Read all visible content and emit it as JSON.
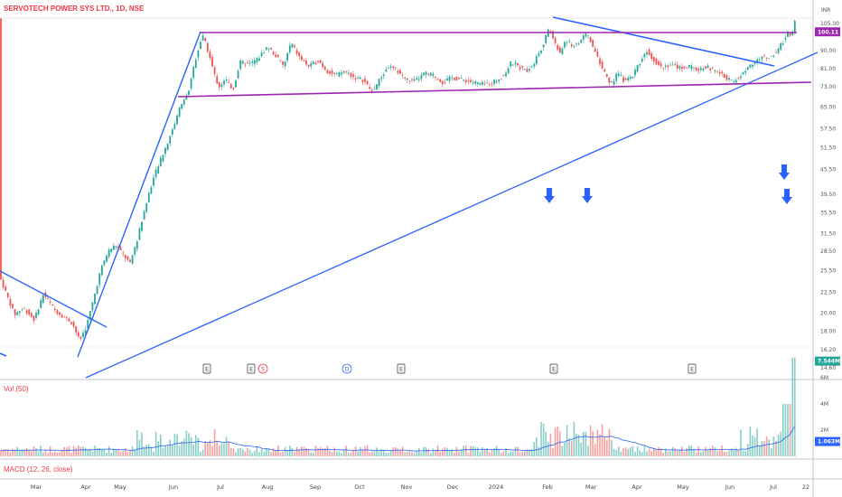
{
  "header": {
    "title": "SERVOTECH POWER SYS LTD., 1D, NSE",
    "currency": "INR"
  },
  "colors": {
    "up": "#26a69a",
    "down": "#ef5350",
    "trendline": "#2962ff",
    "channel": "#9c27b0",
    "arrow": "#2962ff",
    "volume_ma": "#2962ff"
  },
  "chart_data": {
    "type": "candlestick",
    "price_axis": {
      "scale": "log",
      "ticks": [
        "105.00",
        "90.00",
        "81.00",
        "73.00",
        "65.00",
        "57.50",
        "51.50",
        "45.50",
        "39.50",
        "35.50",
        "31.50",
        "28.50",
        "25.50",
        "22.50",
        "20.00",
        "18.00",
        "16.20",
        "14.60"
      ],
      "last_price": "100.11"
    },
    "x_axis": {
      "labels": [
        "Mar",
        "Apr",
        "May",
        "Jun",
        "Jul",
        "Aug",
        "Sep",
        "Oct",
        "Nov",
        "Dec",
        "2024",
        "Feb",
        "Mar",
        "Apr",
        "May",
        "Jun",
        "Jul",
        "22"
      ]
    },
    "volume_pane": {
      "label": "Vol (50)",
      "ticks": [
        "6M",
        "4M",
        "2M"
      ],
      "last_volume": "7.544M",
      "volume_ma": "1.063M"
    },
    "macd_pane": {
      "label": "MACD (12, 26, close)"
    },
    "event_markers": [
      {
        "kind": "E",
        "month": "Jun"
      },
      {
        "kind": "E",
        "month": "Jul"
      },
      {
        "kind": "S",
        "month": "Jul"
      },
      {
        "kind": "D",
        "month": "Sep"
      },
      {
        "kind": "E",
        "month": "Oct"
      },
      {
        "kind": "E",
        "month": "Feb"
      },
      {
        "kind": "E",
        "month": "May"
      }
    ],
    "price_path": [
      {
        "t": 0,
        "p": 24.5
      },
      {
        "t": 8,
        "p": 22.0
      },
      {
        "t": 16,
        "p": 19.8
      },
      {
        "t": 26,
        "p": 20.6
      },
      {
        "t": 38,
        "p": 19.2
      },
      {
        "t": 48,
        "p": 22.3
      },
      {
        "t": 60,
        "p": 20.4
      },
      {
        "t": 70,
        "p": 19.6
      },
      {
        "t": 80,
        "p": 18.9
      },
      {
        "t": 88,
        "p": 17.0
      },
      {
        "t": 96,
        "p": 18.6
      },
      {
        "t": 104,
        "p": 21.8
      },
      {
        "t": 112,
        "p": 25.8
      },
      {
        "t": 120,
        "p": 28.5
      },
      {
        "t": 128,
        "p": 29.5
      },
      {
        "t": 136,
        "p": 28.0
      },
      {
        "t": 144,
        "p": 26.5
      },
      {
        "t": 152,
        "p": 30.5
      },
      {
        "t": 160,
        "p": 36.0
      },
      {
        "t": 168,
        "p": 42.0
      },
      {
        "t": 176,
        "p": 47.0
      },
      {
        "t": 184,
        "p": 52.0
      },
      {
        "t": 192,
        "p": 58.0
      },
      {
        "t": 200,
        "p": 66.0
      },
      {
        "t": 208,
        "p": 70.0
      },
      {
        "t": 216,
        "p": 85.0
      },
      {
        "t": 224,
        "p": 98.0
      },
      {
        "t": 230,
        "p": 90.0
      },
      {
        "t": 236,
        "p": 80.0
      },
      {
        "t": 242,
        "p": 73.0
      },
      {
        "t": 250,
        "p": 76.0
      },
      {
        "t": 258,
        "p": 72.0
      },
      {
        "t": 266,
        "p": 84.0
      },
      {
        "t": 276,
        "p": 83.0
      },
      {
        "t": 286,
        "p": 86.0
      },
      {
        "t": 296,
        "p": 92.0
      },
      {
        "t": 306,
        "p": 87.0
      },
      {
        "t": 314,
        "p": 82.0
      },
      {
        "t": 322,
        "p": 94.0
      },
      {
        "t": 332,
        "p": 86.0
      },
      {
        "t": 342,
        "p": 82.0
      },
      {
        "t": 352,
        "p": 85.0
      },
      {
        "t": 362,
        "p": 80.0
      },
      {
        "t": 372,
        "p": 78.0
      },
      {
        "t": 382,
        "p": 80.0
      },
      {
        "t": 392,
        "p": 77.0
      },
      {
        "t": 402,
        "p": 76.0
      },
      {
        "t": 412,
        "p": 71.0
      },
      {
        "t": 420,
        "p": 76.0
      },
      {
        "t": 430,
        "p": 82.0
      },
      {
        "t": 440,
        "p": 80.0
      },
      {
        "t": 450,
        "p": 76.0
      },
      {
        "t": 460,
        "p": 75.5
      },
      {
        "t": 470,
        "p": 79.0
      },
      {
        "t": 480,
        "p": 78.0
      },
      {
        "t": 490,
        "p": 75.0
      },
      {
        "t": 500,
        "p": 77.0
      },
      {
        "t": 512,
        "p": 76.0
      },
      {
        "t": 524,
        "p": 75.0
      },
      {
        "t": 536,
        "p": 74.0
      },
      {
        "t": 548,
        "p": 75.5
      },
      {
        "t": 558,
        "p": 78.0
      },
      {
        "t": 566,
        "p": 84.0
      },
      {
        "t": 574,
        "p": 82.0
      },
      {
        "t": 582,
        "p": 80.0
      },
      {
        "t": 590,
        "p": 83.0
      },
      {
        "t": 600,
        "p": 92.0
      },
      {
        "t": 608,
        "p": 102.0
      },
      {
        "t": 614,
        "p": 94.0
      },
      {
        "t": 620,
        "p": 88.0
      },
      {
        "t": 626,
        "p": 96.0
      },
      {
        "t": 634,
        "p": 92.0
      },
      {
        "t": 642,
        "p": 95.0
      },
      {
        "t": 650,
        "p": 99.0
      },
      {
        "t": 656,
        "p": 92.0
      },
      {
        "t": 662,
        "p": 86.0
      },
      {
        "t": 668,
        "p": 80.0
      },
      {
        "t": 676,
        "p": 74.0
      },
      {
        "t": 684,
        "p": 79.0
      },
      {
        "t": 692,
        "p": 75.0
      },
      {
        "t": 700,
        "p": 78.0
      },
      {
        "t": 708,
        "p": 84.0
      },
      {
        "t": 716,
        "p": 90.0
      },
      {
        "t": 724,
        "p": 85.0
      },
      {
        "t": 732,
        "p": 82.0
      },
      {
        "t": 742,
        "p": 83.0
      },
      {
        "t": 752,
        "p": 81.5
      },
      {
        "t": 762,
        "p": 82.0
      },
      {
        "t": 772,
        "p": 80.5
      },
      {
        "t": 782,
        "p": 82.0
      },
      {
        "t": 792,
        "p": 80.0
      },
      {
        "t": 802,
        "p": 77.5
      },
      {
        "t": 812,
        "p": 75.0
      },
      {
        "t": 820,
        "p": 78.0
      },
      {
        "t": 828,
        "p": 82.0
      },
      {
        "t": 836,
        "p": 84.0
      },
      {
        "t": 844,
        "p": 87.0
      },
      {
        "t": 852,
        "p": 86.0
      },
      {
        "t": 860,
        "p": 90.0
      },
      {
        "t": 866,
        "p": 94.0
      },
      {
        "t": 872,
        "p": 100.0
      },
      {
        "t": 876,
        "p": 96.0
      },
      {
        "t": 880,
        "p": 108.0
      }
    ]
  }
}
